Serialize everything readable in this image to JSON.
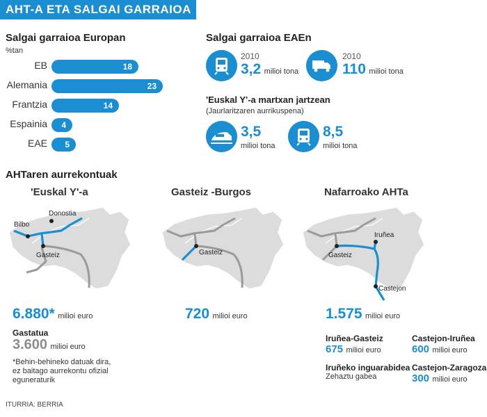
{
  "header": {
    "title": "AHT-A ETA SALGAI GARRAIOA"
  },
  "europe": {
    "title": "Salgai garraioa Europan",
    "unit": "%tan",
    "chart_data": {
      "type": "bar",
      "categories": [
        "EB",
        "Alemania",
        "Frantzia",
        "Espainia",
        "EAE"
      ],
      "values": [
        18,
        23,
        14,
        4,
        5
      ],
      "title": "Salgai garraioa Europan",
      "xlabel": "",
      "ylabel": "%tan"
    }
  },
  "eae": {
    "title": "Salgai garraioa EAEn",
    "rail": {
      "year": "2010",
      "value": "3,2",
      "unit": "milioi tona",
      "icon": "train-icon"
    },
    "road": {
      "year": "2010",
      "value": "110",
      "unit": "milioi tona",
      "icon": "truck-icon"
    },
    "subtitle": "'Euskal Y'-a martxan jartzean",
    "source_note": "(Jaurlaritzaren aurrikuspena)",
    "hs": {
      "value": "3,5",
      "unit": "milioi tona",
      "icon": "high-speed-train-icon"
    },
    "freight": {
      "value": "8,5",
      "unit": "milioi tona",
      "icon": "train-icon"
    }
  },
  "aht": {
    "title": "AHTaren aurrekontuak",
    "map1": {
      "title": "'Euskal Y'-a",
      "labels": [
        "Bilbo",
        "Donostia",
        "Gasteiz"
      ],
      "cost": "6.880*",
      "cost_unit": "milioi euro",
      "spent_label": "Gastatua",
      "spent": "3.600",
      "spent_unit": "milioi euro",
      "note": [
        "*Behin-behineko datuak dira,",
        "ez baitago aurrekontu ofizial",
        "eguneraturik"
      ]
    },
    "map2": {
      "title": "Gasteiz -Burgos",
      "labels": [
        "Gasteiz"
      ],
      "cost": "720",
      "cost_unit": "milioi euro"
    },
    "map3": {
      "title": "Nafarroako AHTa",
      "labels": [
        "Iruñea",
        "Gasteiz",
        "Castejon"
      ],
      "cost": "1.575",
      "cost_unit": "milioi euro",
      "sections": [
        {
          "name": "Iruñea-Gasteiz",
          "value": "675",
          "unit": "milioi euro"
        },
        {
          "name": "Castejon-Iruñea",
          "value": "600",
          "unit": "milioi euro"
        },
        {
          "name": "Iruñeko inguarabidea",
          "value": "Zehaztu gabea"
        },
        {
          "name": "Castejon-Zaragoza",
          "value": "300",
          "unit": "milioi euro"
        }
      ]
    }
  },
  "source": "ITURRIA: BERRIA",
  "colors": {
    "accent": "#1a8ed0",
    "map_fill": "#dcdcdc",
    "road": "#9a9a9a"
  }
}
